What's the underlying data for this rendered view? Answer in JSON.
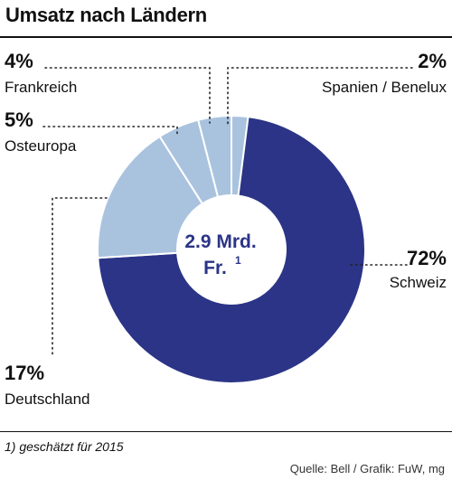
{
  "chart_data": {
    "type": "pie",
    "title": "Umsatz nach Ländern",
    "center_label_line1": "2.9 Mrd.",
    "center_label_line2": "Fr.",
    "center_label_sup": "1",
    "slices": [
      {
        "label": "Schweiz",
        "value": 72,
        "value_label": "72%"
      },
      {
        "label": "Deutschland",
        "value": 17,
        "value_label": "17%"
      },
      {
        "label": "Osteuropa",
        "value": 5,
        "value_label": "5%"
      },
      {
        "label": "Frankreich",
        "value": 4,
        "value_label": "4%"
      },
      {
        "label": "Spanien / Benelux",
        "value": 2,
        "value_label": "2%"
      }
    ],
    "colors": {
      "Schweiz": "#2b3486",
      "Deutschland": "#a9c3df",
      "Osteuropa": "#a9c3df",
      "Frankreich": "#a9c3df",
      "Spanien / Benelux": "#a9c3df",
      "center_text": "#2b3486"
    }
  },
  "footnote": "1) geschätzt für 2015",
  "source": "Quelle: Bell / Grafik: FuW, mg"
}
